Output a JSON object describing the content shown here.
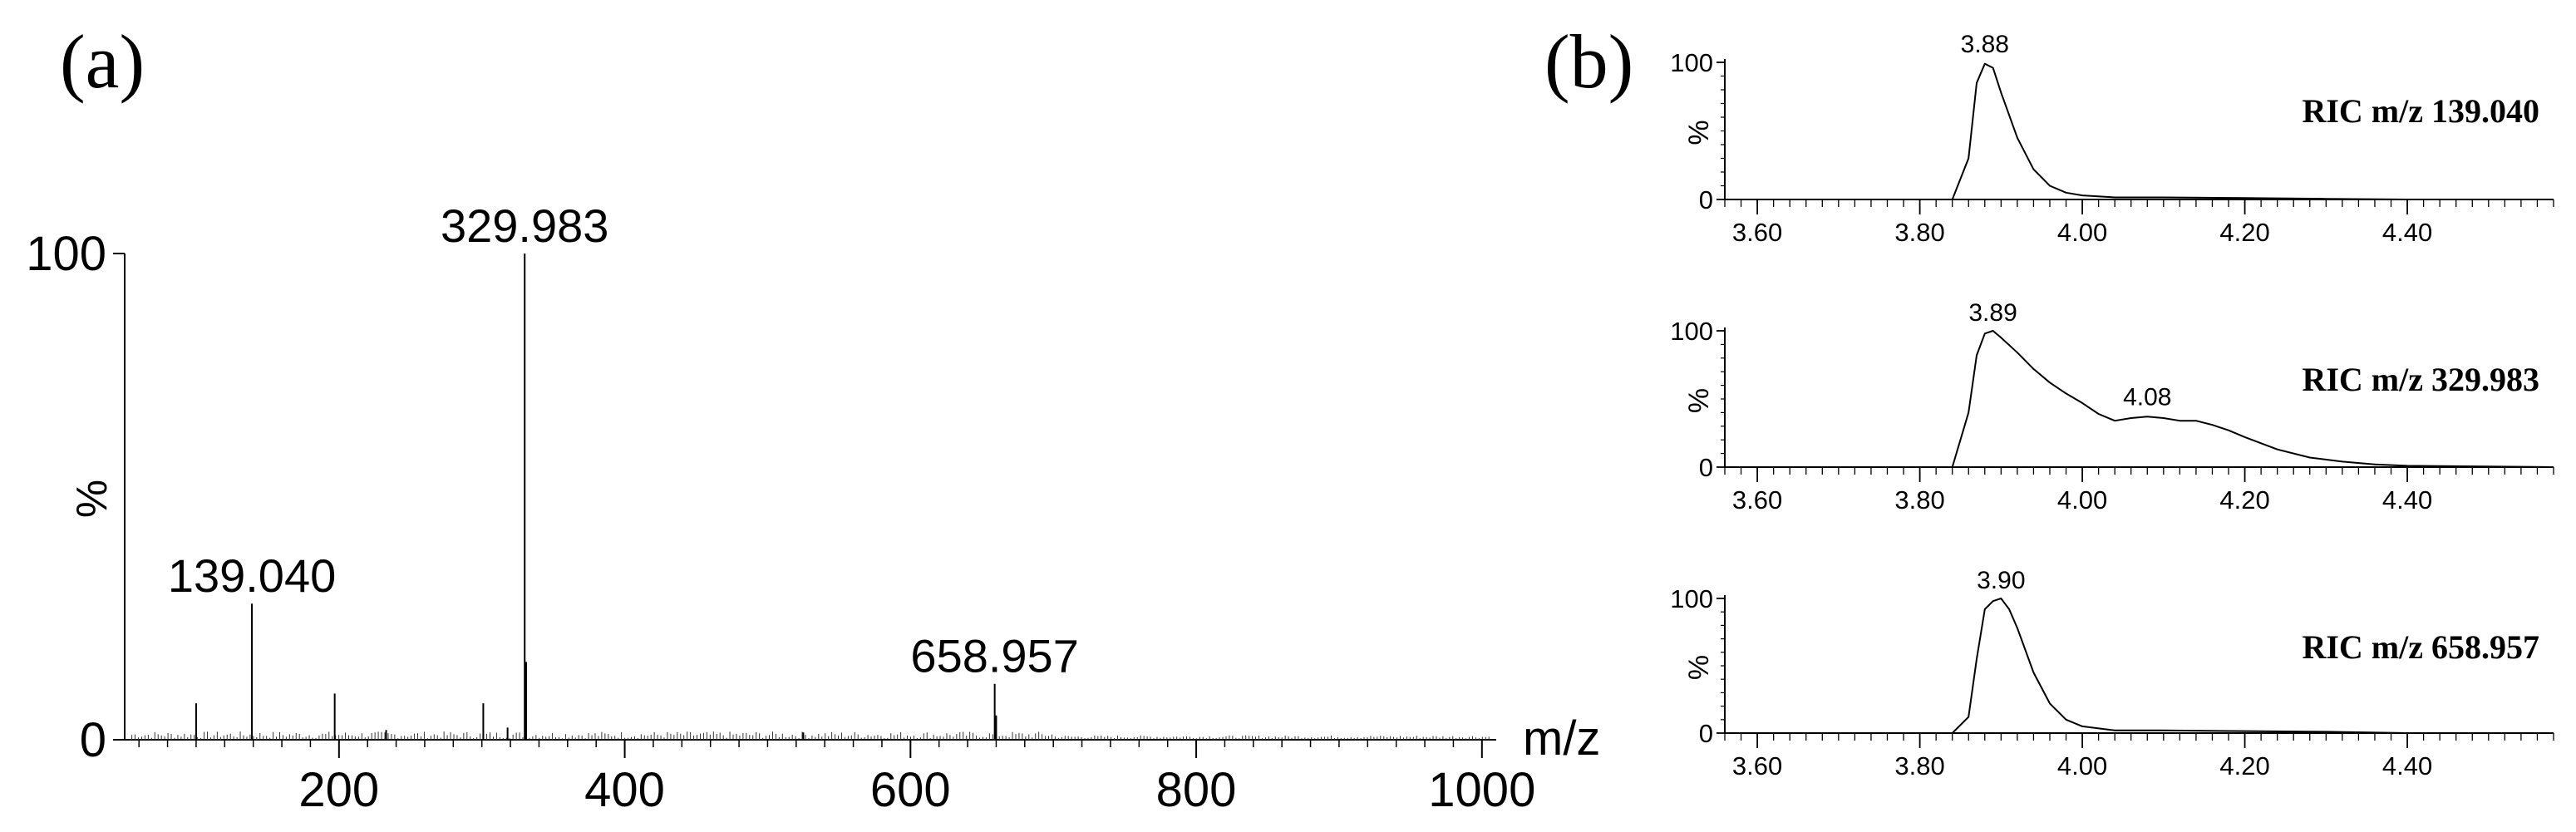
{
  "panel_a": {
    "label": "(a)",
    "chart_data": {
      "type": "bar",
      "xlabel": "m/z",
      "ylabel": "%",
      "xlim": [
        50,
        1010
      ],
      "ylim": [
        0,
        100
      ],
      "x_ticks": [
        200,
        400,
        600,
        800,
        1000
      ],
      "y_ticks": [
        0,
        100
      ],
      "peaks": [
        {
          "x": 100,
          "y": 7.5
        },
        {
          "x": 139.04,
          "y": 28,
          "label": "139.040"
        },
        {
          "x": 197,
          "y": 9.5
        },
        {
          "x": 301,
          "y": 7.5
        },
        {
          "x": 318,
          "y": 2.5
        },
        {
          "x": 329.983,
          "y": 100,
          "label": "329.983"
        },
        {
          "x": 331,
          "y": 16
        },
        {
          "x": 233,
          "y": 2
        },
        {
          "x": 525,
          "y": 1.5
        },
        {
          "x": 658.957,
          "y": 11.5,
          "label": "658.957"
        },
        {
          "x": 660,
          "y": 5
        }
      ]
    }
  },
  "panel_b": {
    "label": "(b)",
    "chart_data": [
      {
        "type": "line",
        "title": "RIC m/z 139.040",
        "ylabel": "%",
        "xlim": [
          3.56,
          4.58
        ],
        "ylim": [
          0,
          100
        ],
        "x_ticks": [
          "3.60",
          "3.80",
          "4.00",
          "4.20",
          "4.40"
        ],
        "y_ticks": [
          "0",
          "100"
        ],
        "annotations": [
          {
            "x": 3.88,
            "y": 100,
            "text": "3.88"
          }
        ],
        "x": [
          3.56,
          3.84,
          3.86,
          3.87,
          3.88,
          3.89,
          3.9,
          3.92,
          3.94,
          3.96,
          3.98,
          4.0,
          4.04,
          4.1,
          4.2,
          4.3,
          4.4,
          4.58
        ],
        "y": [
          0,
          0,
          30,
          85,
          99,
          96,
          78,
          45,
          22,
          10,
          5,
          3,
          1.5,
          1.5,
          1,
          0.5,
          0,
          0
        ]
      },
      {
        "type": "line",
        "title": "RIC m/z 329.983",
        "ylabel": "%",
        "xlim": [
          3.56,
          4.58
        ],
        "ylim": [
          0,
          100
        ],
        "x_ticks": [
          "3.60",
          "3.80",
          "4.00",
          "4.20",
          "4.40"
        ],
        "y_ticks": [
          "0",
          "100"
        ],
        "annotations": [
          {
            "x": 3.89,
            "y": 100,
            "text": "3.89"
          },
          {
            "x": 4.08,
            "y": 38,
            "text": "4.08"
          }
        ],
        "x": [
          3.56,
          3.84,
          3.86,
          3.87,
          3.88,
          3.89,
          3.9,
          3.92,
          3.94,
          3.96,
          3.98,
          4.0,
          4.02,
          4.04,
          4.06,
          4.08,
          4.1,
          4.12,
          4.14,
          4.16,
          4.18,
          4.2,
          4.24,
          4.28,
          4.32,
          4.36,
          4.4,
          4.58
        ],
        "y": [
          0,
          0,
          40,
          82,
          98,
          100,
          95,
          84,
          72,
          62,
          54,
          47,
          39,
          34,
          36,
          37,
          36,
          34,
          34,
          31,
          27,
          22,
          13,
          7,
          4,
          2,
          1,
          0
        ]
      },
      {
        "type": "line",
        "title": "RIC m/z 658.957",
        "ylabel": "%",
        "xlim": [
          3.56,
          4.58
        ],
        "ylim": [
          0,
          100
        ],
        "x_ticks": [
          "3.60",
          "3.80",
          "4.00",
          "4.20",
          "4.40"
        ],
        "y_ticks": [
          "0",
          "100"
        ],
        "annotations": [
          {
            "x": 3.9,
            "y": 100,
            "text": "3.90"
          }
        ],
        "x": [
          3.56,
          3.84,
          3.86,
          3.87,
          3.88,
          3.89,
          3.9,
          3.91,
          3.92,
          3.94,
          3.96,
          3.98,
          4.0,
          4.04,
          4.1,
          4.2,
          4.3,
          4.4,
          4.58
        ],
        "y": [
          0,
          0,
          12,
          55,
          92,
          98,
          100,
          92,
          78,
          45,
          22,
          10,
          5,
          2,
          2,
          1.5,
          1,
          0,
          0
        ]
      }
    ]
  }
}
